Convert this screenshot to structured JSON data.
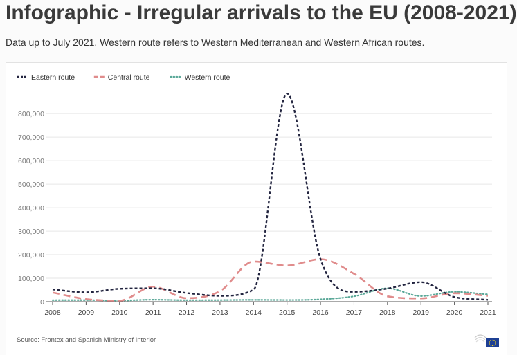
{
  "page": {
    "title": "Infographic - Irregular arrivals to the EU (2008-2021)",
    "subtitle": "Data up to July 2021. Western route refers to Western Mediterranean and Western African routes.",
    "source": "Source: Frontex and Spanish Ministry of Interior",
    "logo_icon": "eu-flag-icon"
  },
  "chart_data": {
    "type": "line",
    "title": "",
    "xlabel": "",
    "ylabel": "",
    "x": [
      2008,
      2009,
      2010,
      2011,
      2012,
      2013,
      2014,
      2015,
      2016,
      2017,
      2018,
      2019,
      2020,
      2021
    ],
    "x_tick_labels": [
      "2008",
      "2009",
      "2010",
      "2011",
      "2012",
      "2013",
      "2014",
      "2015",
      "2016",
      "2017",
      "2018",
      "2019",
      "2020",
      "2021"
    ],
    "ylim": [
      0,
      880000
    ],
    "y_ticks": [
      0,
      100000,
      200000,
      300000,
      400000,
      500000,
      600000,
      700000,
      800000
    ],
    "y_tick_labels": [
      "0",
      "100,000",
      "200,000",
      "300,000",
      "400,000",
      "500,000",
      "600,000",
      "700,000",
      "800,000"
    ],
    "grid": "horizontal",
    "legend_position": "top-left",
    "series": [
      {
        "name": "Eastern route",
        "color": "#22243f",
        "dash": "dense",
        "values": [
          52000,
          40000,
          55000,
          57000,
          37000,
          25000,
          51000,
          885000,
          182000,
          42000,
          56000,
          83000,
          20000,
          8000
        ]
      },
      {
        "name": "Central route",
        "color": "#e08c8c",
        "dash": "long",
        "values": [
          39000,
          11000,
          4500,
          64000,
          15000,
          45000,
          171000,
          154000,
          181000,
          119000,
          23000,
          14000,
          36000,
          25000
        ]
      },
      {
        "name": "Western route",
        "color": "#5aa898",
        "dash": "dotted",
        "values": [
          6500,
          6600,
          5000,
          8400,
          6400,
          6800,
          7800,
          7200,
          10000,
          23000,
          57000,
          24000,
          42000,
          31000
        ]
      }
    ]
  }
}
